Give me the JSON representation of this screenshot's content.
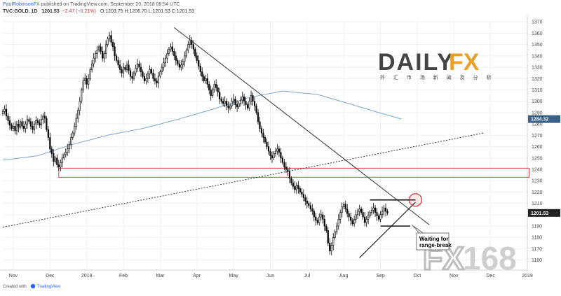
{
  "header": {
    "publisher_user": "PaulRobinsonFX",
    "publisher_rest": " published on TradingView.com, September 20, 2018 08:54 UTC",
    "symbol": "TVC:GOLD, 1D",
    "last": "1201.53",
    "change": "−2.47 (−0.21%)",
    "ohlc": "O:1203.75 H:1206.70 L:1201.53 C:1201.53"
  },
  "footer": {
    "created_with": "Created with",
    "brand": "TradingView"
  },
  "logo": {
    "daily": "DAILY",
    "fx": "FX",
    "subtitle": "外 汇 市 场 新 闻 及 分 析",
    "watermark_fx": "FX",
    "watermark_num": "168"
  },
  "annotation": {
    "line1": "Waiting for",
    "line2": "range-break"
  },
  "colors": {
    "up": "#ffffff",
    "down": "#000000",
    "ma": "#7fa6cc",
    "zone": "#e04545",
    "trend": "#333333",
    "label_bg": "#3b6286",
    "red": "#d23030",
    "logo_dark": "#444444",
    "logo_gold": "#e8a12a",
    "watermark": "#cccccc"
  },
  "chart_data": {
    "type": "candlestick",
    "ylim": [
      1153,
      1372
    ],
    "yticks": [
      1160,
      1170,
      1180,
      1190,
      1200,
      1210,
      1220,
      1230,
      1240,
      1250,
      1260,
      1270,
      1280,
      1290,
      1300,
      1310,
      1320,
      1330,
      1340,
      1350,
      1360,
      1370
    ],
    "x_ticks": [
      {
        "label": "Nov",
        "index": 6
      },
      {
        "label": "Dec",
        "index": 27
      },
      {
        "label": "2018",
        "index": 48
      },
      {
        "label": "Feb",
        "index": 69
      },
      {
        "label": "Mar",
        "index": 90
      },
      {
        "label": "Apr",
        "index": 111
      },
      {
        "label": "May",
        "index": 132
      },
      {
        "label": "Jun",
        "index": 153
      },
      {
        "label": "Jul",
        "index": 174
      },
      {
        "label": "Aug",
        "index": 195
      },
      {
        "label": "Sep",
        "index": 216
      },
      {
        "label": "Oct",
        "index": 237
      },
      {
        "label": "Nov",
        "index": 258
      },
      {
        "label": "Dec",
        "index": 279
      },
      {
        "label": "2019",
        "index": 300
      }
    ],
    "candle_count": 229,
    "total_slots": 301,
    "closes": [
      1291,
      1293,
      1287,
      1283,
      1279,
      1276,
      1278,
      1274,
      1280,
      1277,
      1282,
      1278,
      1276,
      1280,
      1284,
      1282,
      1278,
      1275,
      1280,
      1283,
      1281,
      1279,
      1284,
      1287,
      1285,
      1275,
      1268,
      1258,
      1254,
      1247,
      1250,
      1244,
      1242,
      1246,
      1250,
      1253,
      1255,
      1258,
      1262,
      1268,
      1272,
      1278,
      1285,
      1292,
      1300,
      1310,
      1318,
      1320,
      1315,
      1320,
      1328,
      1333,
      1338,
      1342,
      1345,
      1348,
      1344,
      1338,
      1342,
      1350,
      1355,
      1358,
      1352,
      1348,
      1340,
      1336,
      1332,
      1328,
      1325,
      1330,
      1328,
      1332,
      1327,
      1322,
      1320,
      1325,
      1329,
      1333,
      1330,
      1326,
      1322,
      1318,
      1320,
      1324,
      1328,
      1325,
      1320,
      1318,
      1316,
      1322,
      1326,
      1330,
      1334,
      1338,
      1342,
      1346,
      1348,
      1344,
      1340,
      1336,
      1333,
      1330,
      1332,
      1335,
      1340,
      1345,
      1350,
      1354,
      1350,
      1346,
      1340,
      1336,
      1331,
      1326,
      1322,
      1318,
      1320,
      1315,
      1310,
      1305,
      1310,
      1315,
      1312,
      1308,
      1302,
      1300,
      1298,
      1300,
      1296,
      1294,
      1296,
      1300,
      1302,
      1297,
      1295,
      1298,
      1301,
      1304,
      1300,
      1297,
      1294,
      1300,
      1305,
      1300,
      1296,
      1290,
      1282,
      1276,
      1272,
      1268,
      1264,
      1260,
      1256,
      1252,
      1250,
      1254,
      1256,
      1258,
      1255,
      1250,
      1246,
      1242,
      1240,
      1238,
      1232,
      1228,
      1225,
      1222,
      1226,
      1223,
      1220,
      1218,
      1215,
      1212,
      1210,
      1208,
      1205,
      1203,
      1198,
      1195,
      1193,
      1198,
      1200,
      1196,
      1190,
      1186,
      1175,
      1168,
      1173,
      1180,
      1185,
      1190,
      1196,
      1202,
      1207,
      1209,
      1205,
      1201,
      1198,
      1195,
      1192,
      1196,
      1200,
      1203,
      1205,
      1202,
      1198,
      1193,
      1196,
      1199,
      1202,
      1204,
      1206,
      1202,
      1199,
      1196,
      1200,
      1203,
      1206,
      1203,
      1201.53
    ],
    "moving_average": [
      {
        "index": 0,
        "value": 1248
      },
      {
        "index": 20,
        "value": 1252
      },
      {
        "index": 40,
        "value": 1262
      },
      {
        "index": 60,
        "value": 1270
      },
      {
        "index": 80,
        "value": 1276
      },
      {
        "index": 100,
        "value": 1284
      },
      {
        "index": 120,
        "value": 1293
      },
      {
        "index": 140,
        "value": 1303
      },
      {
        "index": 160,
        "value": 1309
      },
      {
        "index": 180,
        "value": 1306
      },
      {
        "index": 200,
        "value": 1297
      },
      {
        "index": 215,
        "value": 1290
      },
      {
        "index": 228,
        "value": 1284.32
      }
    ],
    "ma_label": "1284.32",
    "price_label": "1201.53",
    "resistance_zone": {
      "from_index": 32,
      "to_index": 301,
      "low": 1233,
      "high": 1241
    },
    "trendline_down": {
      "x1": 98,
      "y1": 1365,
      "x2": 244,
      "y2": 1191
    },
    "trendline_up_dotted": {
      "x1": 0,
      "y1": 1189,
      "x2": 275,
      "y2": 1272
    },
    "range_top": {
      "x1": 210,
      "y1": 1213,
      "x2": 236,
      "y2": 1213
    },
    "range_bottom": {
      "x1": 216,
      "y1": 1190,
      "x2": 233,
      "y2": 1190
    },
    "triangle_support": {
      "x1": 204,
      "y1": 1162,
      "x2": 236,
      "y2": 1211
    },
    "breakout_circle": {
      "index": 236,
      "value": 1213
    }
  }
}
